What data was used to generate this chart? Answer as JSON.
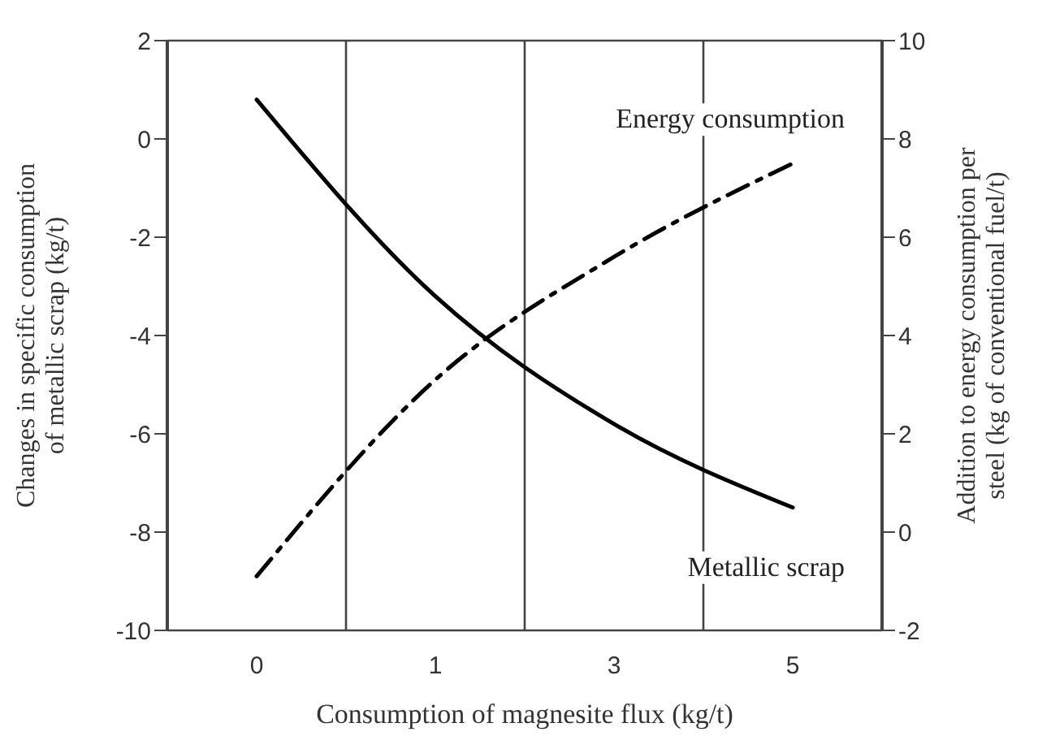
{
  "chart_data": {
    "type": "line",
    "xlabel": "Consumption of magnesite flux (kg/t)",
    "ylabel": "Changes in specific consumption of metallic scrap (kg/t)",
    "y2label": "Addition to energy consumption per steel (kg of conventional fuel/t)",
    "categories": [
      "0",
      "1",
      "3",
      "5"
    ],
    "series": [
      {
        "name": "Metallic scrap",
        "color": "#000000",
        "line_style": "solid",
        "values": [
          0.8,
          -3.2,
          -5.8,
          -7.5
        ]
      },
      {
        "name": "Energy consumption",
        "color": "#000000",
        "line_style": "dashed",
        "axis": "y2",
        "values": [
          -0.9,
          3.1,
          5.6,
          7.5
        ]
      }
    ],
    "ylim": [
      -10,
      2
    ],
    "yticks": [
      -10,
      -8,
      -6,
      -4,
      -2,
      0,
      2
    ],
    "y2lim": [
      -2,
      10
    ],
    "y2ticks": [
      -2,
      0,
      2,
      4,
      6,
      8,
      10
    ],
    "grid": true,
    "marker": "none"
  }
}
